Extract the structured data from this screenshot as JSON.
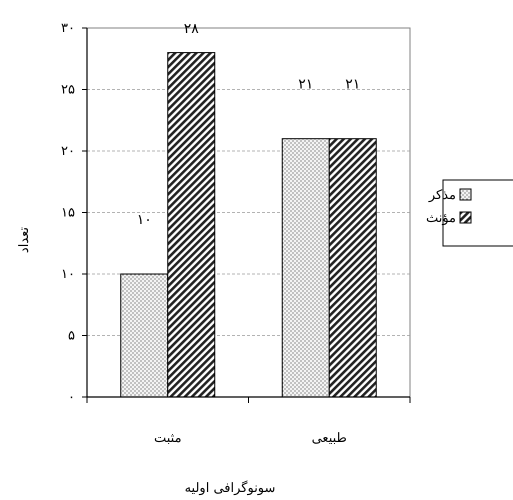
{
  "chart_data": {
    "type": "bar",
    "xlabel": "سونوگرافی اولیه",
    "ylabel": "تعداد",
    "ylim": [
      0,
      30
    ],
    "yticks": [
      {
        "value": 0,
        "label": "۰"
      },
      {
        "value": 5,
        "label": "۵"
      },
      {
        "value": 10,
        "label": "۱۰"
      },
      {
        "value": 15,
        "label": "۱۵"
      },
      {
        "value": 20,
        "label": "۲۰"
      },
      {
        "value": 25,
        "label": "۲۵"
      },
      {
        "value": 30,
        "label": "۳۰"
      }
    ],
    "categories": [
      "مثبت",
      "طبیعی"
    ],
    "series": [
      {
        "name": "مذکر",
        "values": [
          10,
          21
        ],
        "value_labels": [
          "۱۰",
          "۲۱"
        ],
        "pattern": "dots"
      },
      {
        "name": "مؤنث",
        "values": [
          28,
          21
        ],
        "value_labels": [
          "۲۸",
          "۲۱"
        ],
        "pattern": "hatch"
      }
    ],
    "grid": true,
    "legend_position": "right"
  }
}
